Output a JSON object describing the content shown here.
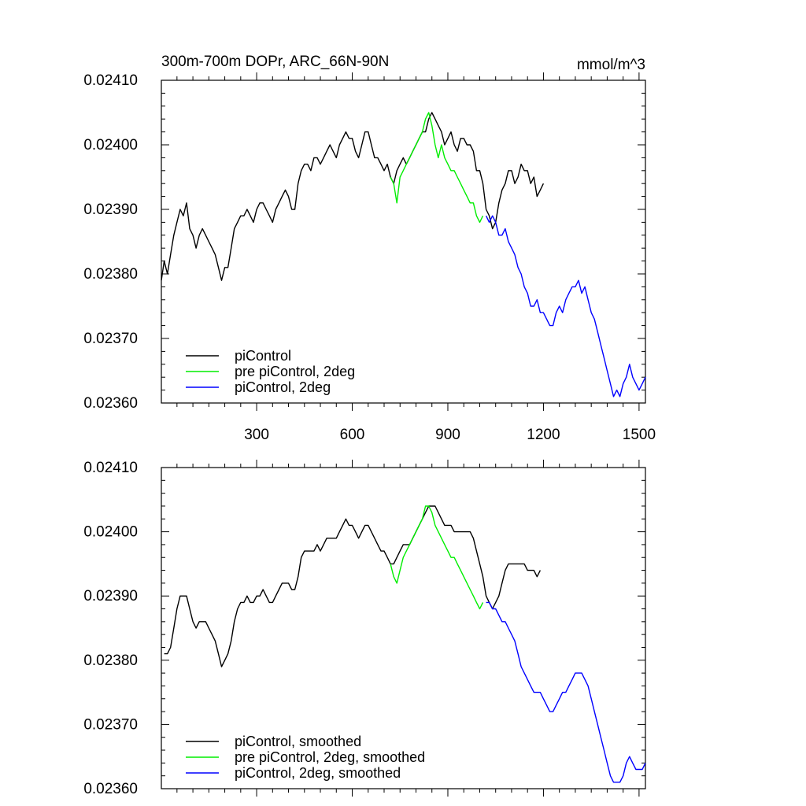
{
  "chart_data": [
    {
      "type": "line",
      "title": "300m-700m DOPr, ARC_66N-90N",
      "units": "mmol/m^3",
      "xlabel": "",
      "ylabel": "",
      "xlim": [
        1,
        1520
      ],
      "ylim": [
        0.0236,
        0.0241
      ],
      "xticks": [
        300,
        600,
        900,
        1200,
        1500
      ],
      "xtick_labels": [
        "300",
        "600",
        "900",
        "1200",
        "1500"
      ],
      "yticks": [
        0.0236,
        0.0237,
        0.0238,
        0.0239,
        0.024,
        0.0241
      ],
      "ytick_labels": [
        "0.02360",
        "0.02370",
        "0.02380",
        "0.02390",
        "0.02400",
        "0.02410"
      ],
      "legend_position": "bottom-left",
      "series": [
        {
          "name": "piControl",
          "color": "#000000",
          "x": [
            1,
            10,
            20,
            30,
            40,
            50,
            60,
            70,
            80,
            90,
            100,
            110,
            120,
            130,
            140,
            150,
            160,
            170,
            180,
            190,
            200,
            210,
            220,
            230,
            240,
            250,
            260,
            270,
            280,
            290,
            300,
            310,
            320,
            330,
            340,
            350,
            360,
            370,
            380,
            390,
            400,
            410,
            420,
            430,
            440,
            450,
            460,
            470,
            480,
            490,
            500,
            510,
            520,
            530,
            540,
            550,
            560,
            570,
            580,
            590,
            600,
            610,
            620,
            630,
            640,
            650,
            660,
            670,
            680,
            690,
            700,
            710,
            720,
            730,
            740,
            750,
            760,
            770,
            780,
            790,
            800,
            810,
            820,
            830,
            840,
            850,
            860,
            870,
            880,
            890,
            900,
            910,
            920,
            930,
            940,
            950,
            960,
            970,
            980,
            990,
            1000,
            1010,
            1020,
            1030,
            1040,
            1050,
            1060,
            1070,
            1080,
            1090,
            1100,
            1110,
            1120,
            1130,
            1140,
            1150,
            1160,
            1170,
            1180,
            1190,
            1200
          ],
          "y": [
            0.02379,
            0.02382,
            0.0238,
            0.02383,
            0.02386,
            0.02388,
            0.0239,
            0.02389,
            0.02391,
            0.02387,
            0.02386,
            0.02384,
            0.02386,
            0.02387,
            0.02386,
            0.02385,
            0.02384,
            0.02383,
            0.02381,
            0.02379,
            0.02381,
            0.02381,
            0.02384,
            0.02387,
            0.02388,
            0.02389,
            0.02389,
            0.0239,
            0.02389,
            0.02388,
            0.0239,
            0.02391,
            0.02391,
            0.0239,
            0.02389,
            0.02388,
            0.0239,
            0.02391,
            0.02392,
            0.02393,
            0.02392,
            0.0239,
            0.0239,
            0.02394,
            0.02396,
            0.02397,
            0.02397,
            0.02396,
            0.02398,
            0.02398,
            0.02397,
            0.02398,
            0.02399,
            0.024,
            0.02399,
            0.02398,
            0.024,
            0.02401,
            0.02402,
            0.02401,
            0.02401,
            0.02399,
            0.02398,
            0.024,
            0.02402,
            0.02402,
            0.024,
            0.02398,
            0.02398,
            0.02397,
            0.02396,
            0.02397,
            0.02395,
            0.02394,
            0.02396,
            0.02397,
            0.02398,
            0.02397,
            0.02398,
            0.02399,
            0.024,
            0.02401,
            0.02402,
            0.02402,
            0.02404,
            0.02405,
            0.02404,
            0.02403,
            0.02402,
            0.024,
            0.02401,
            0.02402,
            0.024,
            0.02399,
            0.02401,
            0.02401,
            0.024,
            0.024,
            0.02399,
            0.02396,
            0.02396,
            0.02394,
            0.0239,
            0.02389,
            0.02387,
            0.02388,
            0.02391,
            0.02393,
            0.02394,
            0.02396,
            0.02396,
            0.02394,
            0.02395,
            0.02397,
            0.02396,
            0.02396,
            0.02394,
            0.02395,
            0.02392,
            0.02393,
            0.02394
          ]
        },
        {
          "name": "pre piControl, 2deg",
          "color": "#00ee00",
          "x": [
            720,
            730,
            740,
            750,
            760,
            770,
            780,
            790,
            800,
            810,
            820,
            830,
            840,
            850,
            860,
            870,
            880,
            890,
            900,
            910,
            920,
            930,
            940,
            950,
            960,
            970,
            980,
            990,
            1000,
            1010
          ],
          "y": [
            0.02395,
            0.02394,
            0.02391,
            0.02395,
            0.02396,
            0.02397,
            0.02398,
            0.02399,
            0.024,
            0.02401,
            0.02402,
            0.02404,
            0.02405,
            0.02403,
            0.024,
            0.02398,
            0.024,
            0.02398,
            0.02397,
            0.02396,
            0.02396,
            0.02395,
            0.02394,
            0.02393,
            0.02392,
            0.02391,
            0.02391,
            0.02389,
            0.02388,
            0.02389
          ]
        },
        {
          "name": "piControl, 2deg",
          "color": "#0000ff",
          "x": [
            1020,
            1030,
            1040,
            1050,
            1060,
            1070,
            1080,
            1090,
            1100,
            1110,
            1120,
            1130,
            1140,
            1150,
            1160,
            1170,
            1180,
            1190,
            1200,
            1210,
            1220,
            1230,
            1240,
            1250,
            1260,
            1270,
            1280,
            1290,
            1300,
            1310,
            1320,
            1330,
            1340,
            1350,
            1360,
            1370,
            1380,
            1390,
            1400,
            1410,
            1420,
            1430,
            1440,
            1450,
            1460,
            1470,
            1480,
            1490,
            1500,
            1510,
            1520
          ],
          "y": [
            0.02389,
            0.02388,
            0.02389,
            0.02388,
            0.02386,
            0.02386,
            0.02387,
            0.02385,
            0.02384,
            0.02383,
            0.02381,
            0.0238,
            0.02378,
            0.02377,
            0.02375,
            0.02375,
            0.02376,
            0.02374,
            0.02374,
            0.02373,
            0.02372,
            0.02372,
            0.02374,
            0.02375,
            0.02374,
            0.02376,
            0.02377,
            0.02378,
            0.02378,
            0.02379,
            0.02377,
            0.02378,
            0.02376,
            0.02374,
            0.02373,
            0.02371,
            0.02369,
            0.02367,
            0.02365,
            0.02363,
            0.02361,
            0.02362,
            0.02361,
            0.02363,
            0.02364,
            0.02366,
            0.02364,
            0.02363,
            0.02362,
            0.02363,
            0.02364
          ]
        }
      ]
    },
    {
      "type": "line",
      "title": "",
      "units": "",
      "xlabel": "",
      "ylabel": "",
      "xlim": [
        1,
        1520
      ],
      "ylim": [
        0.0236,
        0.0241
      ],
      "xticks": [
        300,
        600,
        900,
        1200,
        1500
      ],
      "xtick_labels": [],
      "yticks": [
        0.0236,
        0.0237,
        0.0238,
        0.0239,
        0.024,
        0.0241
      ],
      "ytick_labels": [
        "0.02360",
        "0.02370",
        "0.02380",
        "0.02390",
        "0.02400",
        "0.02410"
      ],
      "legend_position": "bottom-left",
      "series": [
        {
          "name": "piControl, smoothed",
          "color": "#000000",
          "x": [
            10,
            20,
            30,
            40,
            50,
            60,
            70,
            80,
            90,
            100,
            110,
            120,
            130,
            140,
            150,
            160,
            170,
            180,
            190,
            200,
            210,
            220,
            230,
            240,
            250,
            260,
            270,
            280,
            290,
            300,
            310,
            320,
            330,
            340,
            350,
            360,
            370,
            380,
            390,
            400,
            410,
            420,
            430,
            440,
            450,
            460,
            470,
            480,
            490,
            500,
            510,
            520,
            530,
            540,
            550,
            560,
            570,
            580,
            590,
            600,
            610,
            620,
            630,
            640,
            650,
            660,
            670,
            680,
            690,
            700,
            710,
            720,
            730,
            740,
            750,
            760,
            770,
            780,
            790,
            800,
            810,
            820,
            830,
            840,
            850,
            860,
            870,
            880,
            890,
            900,
            910,
            920,
            930,
            940,
            950,
            960,
            970,
            980,
            990,
            1000,
            1010,
            1020,
            1030,
            1040,
            1050,
            1060,
            1070,
            1080,
            1090,
            1100,
            1110,
            1120,
            1130,
            1140,
            1150,
            1160,
            1170,
            1180,
            1190
          ],
          "y": [
            0.02381,
            0.02381,
            0.02382,
            0.02385,
            0.02388,
            0.0239,
            0.0239,
            0.0239,
            0.02388,
            0.02386,
            0.02385,
            0.02386,
            0.02386,
            0.02386,
            0.02385,
            0.02384,
            0.02383,
            0.02381,
            0.02379,
            0.0238,
            0.02381,
            0.02383,
            0.02386,
            0.02388,
            0.02389,
            0.02389,
            0.0239,
            0.02389,
            0.02389,
            0.0239,
            0.0239,
            0.02391,
            0.0239,
            0.02389,
            0.02389,
            0.0239,
            0.02391,
            0.02392,
            0.02392,
            0.02392,
            0.02391,
            0.02391,
            0.02393,
            0.02396,
            0.02397,
            0.02397,
            0.02397,
            0.02397,
            0.02398,
            0.02397,
            0.02398,
            0.02399,
            0.02399,
            0.02399,
            0.02399,
            0.024,
            0.02401,
            0.02402,
            0.02401,
            0.02401,
            0.024,
            0.02399,
            0.024,
            0.02401,
            0.02401,
            0.024,
            0.02399,
            0.02398,
            0.02397,
            0.02397,
            0.02396,
            0.02395,
            0.02395,
            0.02396,
            0.02397,
            0.02398,
            0.02398,
            0.02398,
            0.02399,
            0.024,
            0.02401,
            0.02402,
            0.02403,
            0.02404,
            0.02404,
            0.02404,
            0.02403,
            0.02402,
            0.02401,
            0.02401,
            0.02401,
            0.024,
            0.024,
            0.024,
            0.024,
            0.024,
            0.024,
            0.02399,
            0.02397,
            0.02395,
            0.02393,
            0.0239,
            0.02389,
            0.02388,
            0.02389,
            0.0239,
            0.02392,
            0.02394,
            0.02395,
            0.02395,
            0.02395,
            0.02395,
            0.02395,
            0.02395,
            0.02394,
            0.02394,
            0.02394,
            0.02393,
            0.02394
          ]
        },
        {
          "name": "pre piControl, 2deg, smoothed",
          "color": "#00ee00",
          "x": [
            720,
            730,
            740,
            750,
            760,
            770,
            780,
            790,
            800,
            810,
            820,
            830,
            840,
            850,
            860,
            870,
            880,
            890,
            900,
            910,
            920,
            930,
            940,
            950,
            960,
            970,
            980,
            990,
            1000,
            1010
          ],
          "y": [
            0.02395,
            0.02393,
            0.02392,
            0.02394,
            0.02396,
            0.02397,
            0.02398,
            0.02399,
            0.024,
            0.02401,
            0.02402,
            0.02404,
            0.02404,
            0.02403,
            0.02401,
            0.024,
            0.02399,
            0.02398,
            0.02397,
            0.02396,
            0.02396,
            0.02395,
            0.02394,
            0.02393,
            0.02392,
            0.02391,
            0.0239,
            0.02389,
            0.02388,
            0.02389
          ]
        },
        {
          "name": "piControl, 2deg, smoothed",
          "color": "#0000ff",
          "x": [
            1020,
            1030,
            1040,
            1050,
            1060,
            1070,
            1080,
            1090,
            1100,
            1110,
            1120,
            1130,
            1140,
            1150,
            1160,
            1170,
            1180,
            1190,
            1200,
            1210,
            1220,
            1230,
            1240,
            1250,
            1260,
            1270,
            1280,
            1290,
            1300,
            1310,
            1320,
            1330,
            1340,
            1350,
            1360,
            1370,
            1380,
            1390,
            1400,
            1410,
            1420,
            1430,
            1440,
            1450,
            1460,
            1470,
            1480,
            1490,
            1500,
            1510,
            1520
          ],
          "y": [
            0.02389,
            0.02389,
            0.02388,
            0.02388,
            0.02387,
            0.02386,
            0.02386,
            0.02385,
            0.02384,
            0.02383,
            0.02381,
            0.02379,
            0.02378,
            0.02377,
            0.02376,
            0.02375,
            0.02375,
            0.02375,
            0.02374,
            0.02373,
            0.02372,
            0.02372,
            0.02373,
            0.02374,
            0.02375,
            0.02375,
            0.02376,
            0.02377,
            0.02378,
            0.02378,
            0.02378,
            0.02377,
            0.02376,
            0.02374,
            0.02372,
            0.0237,
            0.02368,
            0.02366,
            0.02364,
            0.02362,
            0.02361,
            0.02361,
            0.02361,
            0.02362,
            0.02364,
            0.02365,
            0.02364,
            0.02363,
            0.02363,
            0.02363,
            0.02364
          ]
        }
      ]
    }
  ]
}
